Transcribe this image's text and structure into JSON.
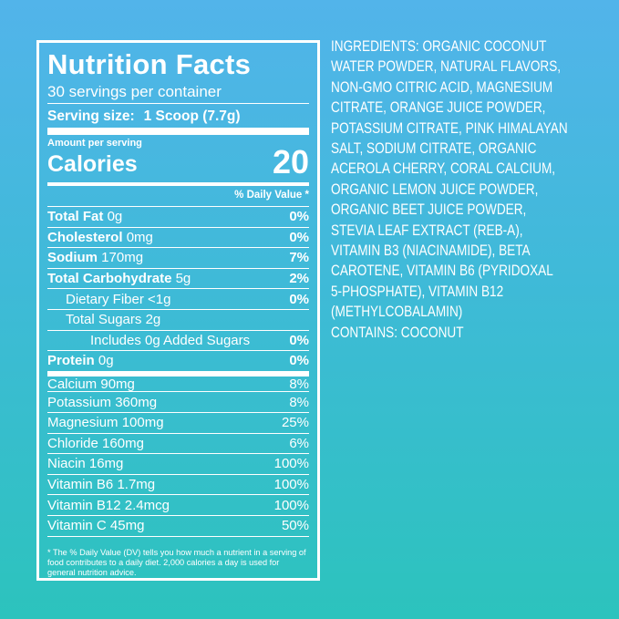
{
  "label": {
    "title": "Nutrition Facts",
    "servings": "30 servings per container",
    "serving_size_label": "Serving size:",
    "serving_size_value": "1 Scoop (7.7g)",
    "amount_per_serving": "Amount per serving",
    "calories_label": "Calories",
    "calories_value": "20",
    "daily_value_header": "% Daily Value *",
    "rows": [
      {
        "name": "Total Fat",
        "amount": "0g",
        "dv": "0%",
        "bold": true,
        "indent": 0
      },
      {
        "name": "Cholesterol",
        "amount": "0mg",
        "dv": "0%",
        "bold": true,
        "indent": 0
      },
      {
        "name": "Sodium",
        "amount": "170mg",
        "dv": "7%",
        "bold": true,
        "indent": 0
      },
      {
        "name": "Total Carbohydrate",
        "amount": "5g",
        "dv": "2%",
        "bold": true,
        "indent": 0
      },
      {
        "name": "Dietary Fiber",
        "amount": "<1g",
        "dv": "0%",
        "bold": false,
        "indent": 1
      },
      {
        "name": "Total Sugars",
        "amount": "2g",
        "dv": null,
        "bold": false,
        "indent": 1
      },
      {
        "name": "Includes 0g Added Sugars",
        "amount": null,
        "dv": "0%",
        "bold": false,
        "indent": 2
      },
      {
        "name": "Protein",
        "amount": "0g",
        "dv": "0%",
        "bold": true,
        "indent": 0
      }
    ],
    "vitamins": [
      {
        "name": "Calcium",
        "amount": "90mg",
        "dv": "8%"
      },
      {
        "name": "Potassium",
        "amount": "360mg",
        "dv": "8%"
      },
      {
        "name": "Magnesium",
        "amount": "100mg",
        "dv": "25%"
      },
      {
        "name": "Chloride",
        "amount": "160mg",
        "dv": "6%"
      },
      {
        "name": "Niacin",
        "amount": "16mg",
        "dv": "100%"
      },
      {
        "name": "Vitamin B6",
        "amount": "1.7mg",
        "dv": "100%"
      },
      {
        "name": "Vitamin B12",
        "amount": "2.4mcg",
        "dv": "100%"
      },
      {
        "name": "Vitamin C",
        "amount": "45mg",
        "dv": "50%"
      }
    ],
    "footnote": "* The % Daily Value (DV) tells you how much a nutrient in a serving of food contributes to a daily diet. 2,000 calories a day is used for general nutrition advice."
  },
  "ingredients": {
    "lines": [
      "INGREDIENTS: ORGANIC COCONUT",
      "WATER POWDER, NATURAL FLAVORS,",
      "NON-GMO CITRIC ACID,  MAGNESIUM",
      "CITRATE, ORANGE JUICE POWDER,",
      "POTASSIUM CITRATE, PINK HIMALAYAN",
      "SALT, SODIUM CITRATE, ORGANIC",
      "ACEROLA CHERRY, CORAL CALCIUM,",
      "ORGANIC LEMON JUICE POWDER,",
      "ORGANIC BEET JUICE POWDER,",
      "STEVIA LEAF EXTRACT (REB-A),",
      "VITAMIN B3 (NIACINAMIDE), BETA",
      "CAROTENE, VITAMIN B6 (PYRIDOXAL",
      "5-PHOSPHATE), VITAMIN B12",
      "(METHYLCOBALAMIN)"
    ],
    "contains": "CONTAINS: COCONUT"
  }
}
